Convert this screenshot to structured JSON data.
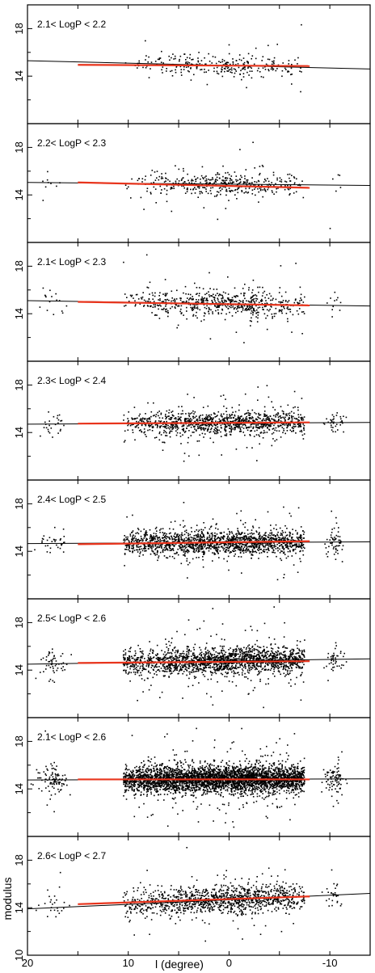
{
  "chart_data": {
    "type": "scatter",
    "xlabel": "l (degree)",
    "ylabel": "modulus",
    "xlim": [
      20,
      -14
    ],
    "ylim": [
      10,
      20
    ],
    "x_ticks": [
      20,
      10,
      0,
      -10
    ],
    "y_ticks": [
      14,
      18
    ],
    "bottom_y_ticks": [
      10,
      14,
      18
    ],
    "x_tick_labels": [
      "20",
      "10",
      "0",
      "-10"
    ],
    "panels": [
      {
        "title": "2.1< LogP < 2.2",
        "density": 280,
        "core_sigma": 3.5,
        "y_sigma": 0.45,
        "y_spread_extra": 0.8,
        "wing_left": false,
        "wing_right": false,
        "outer_left": 0.0,
        "black_line": [
          [
            20,
            15.3
          ],
          [
            -14,
            14.6
          ]
        ],
        "red_line": [
          [
            15,
            14.95
          ],
          [
            -8,
            14.85
          ]
        ]
      },
      {
        "title": "2.2< LogP < 2.3",
        "density": 420,
        "core_sigma": 3.8,
        "y_sigma": 0.5,
        "y_spread_extra": 0.9,
        "wing_left": true,
        "wing_right": true,
        "outer_left": 0.0,
        "black_line": [
          [
            20,
            15.05
          ],
          [
            -14,
            14.8
          ]
        ],
        "red_line": [
          [
            15,
            15.05
          ],
          [
            -8,
            14.6
          ]
        ]
      },
      {
        "title": "2.1< LogP < 2.3",
        "density": 650,
        "core_sigma": 3.8,
        "y_sigma": 0.5,
        "y_spread_extra": 0.9,
        "wing_left": true,
        "wing_right": true,
        "outer_left": 0.0,
        "black_line": [
          [
            20,
            15.1
          ],
          [
            -14,
            14.65
          ]
        ],
        "red_line": [
          [
            15,
            15.0
          ],
          [
            -8,
            14.7
          ]
        ]
      },
      {
        "title": "2.3< LogP < 2.4",
        "density": 1150,
        "core_sigma": 4.5,
        "y_sigma": 0.45,
        "y_spread_extra": 0.9,
        "wing_left": true,
        "wing_right": true,
        "outer_left": 0.0,
        "black_line": [
          [
            20,
            14.7
          ],
          [
            -14,
            14.85
          ]
        ],
        "red_line": [
          [
            15,
            14.75
          ],
          [
            -8,
            14.85
          ]
        ]
      },
      {
        "title": "2.4< LogP < 2.5",
        "density": 1700,
        "core_sigma": 5.0,
        "y_sigma": 0.5,
        "y_spread_extra": 0.9,
        "wing_left": true,
        "wing_right": true,
        "outer_left": 0.0,
        "black_line": [
          [
            20,
            14.65
          ],
          [
            -14,
            14.8
          ]
        ],
        "red_line": [
          [
            15,
            14.6
          ],
          [
            -8,
            14.85
          ]
        ]
      },
      {
        "title": "2.5< LogP < 2.6",
        "density": 1900,
        "core_sigma": 5.0,
        "y_sigma": 0.55,
        "y_spread_extra": 1.0,
        "wing_left": true,
        "wing_right": true,
        "outer_left": 0.0,
        "black_line": [
          [
            20,
            14.5
          ],
          [
            -14,
            14.95
          ]
        ],
        "red_line": [
          [
            15,
            14.6
          ],
          [
            -8,
            14.75
          ]
        ]
      },
      {
        "title": "2.1< LogP < 2.6",
        "density": 3800,
        "core_sigma": 5.5,
        "y_sigma": 0.55,
        "y_spread_extra": 1.0,
        "wing_left": true,
        "wing_right": true,
        "outer_left": 0.0,
        "black_line": [
          [
            20,
            14.75
          ],
          [
            -14,
            14.85
          ]
        ],
        "red_line": [
          [
            15,
            14.8
          ],
          [
            -8,
            14.8
          ]
        ]
      },
      {
        "title": "2.6< LogP < 2.7",
        "density": 1200,
        "core_sigma": 4.8,
        "y_sigma": 0.6,
        "y_spread_extra": 1.0,
        "wing_left": true,
        "wing_right": true,
        "outer_left": 0.0,
        "black_line": [
          [
            20,
            13.9
          ],
          [
            -14,
            15.2
          ]
        ],
        "red_line": [
          [
            15,
            14.3
          ],
          [
            -8,
            14.95
          ]
        ]
      }
    ],
    "grid": false,
    "legend": "none"
  }
}
